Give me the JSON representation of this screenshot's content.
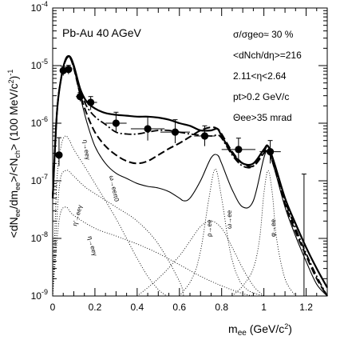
{
  "chart_data": {
    "type": "line",
    "title": "Pb-Au 40 AGeV",
    "ylabel": "<dN_ee/dm_ee>/<N_ch> (100 MeV/c^2)^-1",
    "xlabel": "m_ee (GeV/c^2)",
    "xlim": [
      0,
      1.3
    ],
    "ylim": [
      1e-09,
      0.0001
    ],
    "yscale": "log",
    "grid": false,
    "x_ticks": [
      "0",
      "0.2",
      "0.4",
      "0.6",
      "0.8",
      "1",
      "1.2"
    ],
    "y_ticks": [
      "10^-9",
      "10^-8",
      "10^-7",
      "10^-6",
      "10^-5",
      "10^-4"
    ],
    "annotations": {
      "line1": "σ/σgeo≈ 30 %",
      "line2": "<dNch/dη>=216",
      "line3": "2.11<η<2.64",
      "line4": "pt>0.2 GeV/c",
      "line5": "Θee>35 mrad"
    },
    "process_labels": {
      "eta_dalitz": "η→eeγ",
      "omega_dalitz": "ω→eeπ0",
      "etaprime": "η'→eeγ",
      "rho": "ρ→ee",
      "omega": "ω→ee",
      "phi": "φ→ee"
    },
    "data_points": [
      {
        "x": 0.03,
        "y": 2.8e-07,
        "xerr": 0.01,
        "yerr_up": 2.8e-07,
        "yerr_down": 1e-07
      },
      {
        "x": 0.05,
        "y": 8.2e-06,
        "xerr": 0.01,
        "yerr_up": 1.5e-06,
        "yerr_down": 1.5e-06
      },
      {
        "x": 0.075,
        "y": 8.6e-06,
        "xerr": 0.015,
        "yerr_up": 1.5e-06,
        "yerr_down": 1.5e-06
      },
      {
        "x": 0.13,
        "y": 2.9e-06,
        "xerr": 0.02,
        "yerr_up": 5e-07,
        "yerr_down": 5e-07
      },
      {
        "x": 0.18,
        "y": 2.3e-06,
        "xerr": 0.03,
        "yerr_up": 6e-07,
        "yerr_down": 6e-07
      },
      {
        "x": 0.3,
        "y": 1e-06,
        "xerr": 0.05,
        "yerr_up": 5.5e-07,
        "yerr_down": 3e-07
      },
      {
        "x": 0.45,
        "y": 8e-07,
        "xerr": 0.08,
        "yerr_up": 5e-07,
        "yerr_down": 3e-07
      },
      {
        "x": 0.58,
        "y": 7e-07,
        "xerr": 0.07,
        "yerr_up": 4.5e-07,
        "yerr_down": 2.5e-07
      },
      {
        "x": 0.72,
        "y": 6e-07,
        "xerr": 0.05,
        "yerr_up": 3e-07,
        "yerr_down": 2e-07
      },
      {
        "x": 0.88,
        "y": 3.5e-07,
        "xerr": 0.08,
        "yerr_up": 2e-07,
        "yerr_down": 1.5e-07
      },
      {
        "x": 1.03,
        "y": 3.2e-07,
        "xerr": 0.05,
        "yerr_up": 1.8e-07,
        "yerr_down": 1.2e-07
      },
      {
        "x": 1.19,
        "y": 1e-09,
        "xerr": 0.0,
        "yerr_up": 1.3e-07,
        "yerr_down": 0.0
      }
    ],
    "series": [
      {
        "style": "solid-thick",
        "x": [
          0.0,
          0.02,
          0.04,
          0.06,
          0.08,
          0.1,
          0.13,
          0.16,
          0.2,
          0.25,
          0.3,
          0.35,
          0.4,
          0.45,
          0.5,
          0.55,
          0.6,
          0.65,
          0.7,
          0.75,
          0.78,
          0.8,
          0.85,
          0.9,
          0.95,
          1.0,
          1.02,
          1.05,
          1.1,
          1.15,
          1.2,
          1.25,
          1.3
        ],
        "y": [
          5e-08,
          1.5e-06,
          6e-06,
          1.25e-05,
          1.45e-05,
          1e-05,
          4e-06,
          2.4e-06,
          1.8e-06,
          1.5e-06,
          1.4e-06,
          1.35e-06,
          1.3e-06,
          1.3e-06,
          1.25e-06,
          1.15e-06,
          1e-06,
          9e-07,
          7.5e-07,
          7.5e-07,
          8e-07,
          6e-07,
          3e-07,
          2e-07,
          2e-07,
          3.5e-07,
          4e-07,
          2e-07,
          5e-08,
          1.8e-08,
          7e-09,
          3e-09,
          1.4e-09
        ]
      },
      {
        "style": "dash-dot",
        "x": [
          0.0,
          0.02,
          0.04,
          0.06,
          0.08,
          0.1,
          0.13,
          0.16,
          0.2,
          0.25,
          0.3,
          0.35,
          0.4,
          0.45,
          0.5,
          0.55,
          0.6,
          0.65,
          0.7,
          0.75,
          0.78,
          0.8,
          0.85,
          0.9,
          0.95,
          1.0,
          1.02,
          1.05,
          1.1,
          1.15,
          1.2,
          1.25,
          1.3
        ],
        "y": [
          5e-08,
          1.5e-06,
          6e-06,
          1.2e-05,
          1.4e-05,
          9.5e-06,
          3.8e-06,
          2e-06,
          1.3e-06,
          9.5e-07,
          7e-07,
          6.5e-07,
          6.5e-07,
          7e-07,
          7.5e-07,
          7.5e-07,
          7e-07,
          6.5e-07,
          6.2e-07,
          6e-07,
          6.2e-07,
          5.5e-07,
          2.8e-07,
          1.8e-07,
          1.8e-07,
          3.3e-07,
          3.8e-07,
          1.9e-07,
          4.5e-08,
          1.5e-08,
          5.5e-09,
          2.2e-09,
          1e-09
        ]
      },
      {
        "style": "dashed",
        "x": [
          0.0,
          0.02,
          0.04,
          0.06,
          0.08,
          0.1,
          0.13,
          0.16,
          0.2,
          0.25,
          0.3,
          0.35,
          0.4,
          0.45,
          0.5,
          0.55,
          0.6,
          0.65,
          0.7,
          0.75,
          0.78,
          0.8,
          0.85,
          0.9,
          0.95,
          1.0,
          1.02,
          1.05,
          1.1,
          1.15,
          1.2,
          1.25,
          1.3
        ],
        "y": [
          5e-08,
          1.5e-06,
          6e-06,
          1.2e-05,
          1.4e-05,
          9e-06,
          3.2e-06,
          1.5e-06,
          7e-07,
          4e-07,
          2.8e-07,
          2.2e-07,
          2e-07,
          2.2e-07,
          2.8e-07,
          3.6e-07,
          4.5e-07,
          5.8e-07,
          7.5e-07,
          8.5e-07,
          8e-07,
          6.5e-07,
          3.2e-07,
          2e-07,
          1.8e-07,
          3e-07,
          3.4e-07,
          1.7e-07,
          4e-08,
          1.3e-08,
          5e-09,
          2e-09,
          1e-09
        ]
      },
      {
        "style": "solid-thin",
        "x": [
          0.0,
          0.02,
          0.04,
          0.06,
          0.08,
          0.1,
          0.13,
          0.16,
          0.2,
          0.25,
          0.3,
          0.35,
          0.4,
          0.45,
          0.5,
          0.55,
          0.6,
          0.62,
          0.65,
          0.7,
          0.75,
          0.78,
          0.8,
          0.85,
          0.9,
          0.95,
          1.0,
          1.02,
          1.05,
          1.1,
          1.15,
          1.2,
          1.25,
          1.3
        ],
        "y": [
          5e-08,
          1.5e-06,
          6e-06,
          1.2e-05,
          1.4e-05,
          9e-06,
          3e-06,
          1.1e-06,
          4e-07,
          2e-07,
          1.35e-07,
          1.1e-07,
          9e-08,
          8e-08,
          7.5e-08,
          6.5e-08,
          5e-08,
          4.5e-08,
          5e-08,
          1e-07,
          2.5e-07,
          2.8e-07,
          2e-07,
          7e-08,
          3.5e-08,
          4.5e-08,
          2.5e-07,
          3.2e-07,
          1.6e-07,
          3.5e-08,
          1.1e-08,
          4e-09,
          1.6e-09,
          1e-09
        ]
      },
      {
        "style": "dotted",
        "name": "η→eeγ",
        "x": [
          0.0,
          0.02,
          0.04,
          0.06,
          0.08,
          0.1,
          0.15,
          0.2,
          0.25,
          0.3,
          0.35,
          0.4,
          0.45,
          0.5,
          0.54
        ],
        "y": [
          1e-09,
          1e-07,
          4e-07,
          6e-07,
          5e-07,
          3.5e-07,
          1.8e-07,
          9e-08,
          4.5e-08,
          2.2e-08,
          1e-08,
          4.5e-09,
          2.2e-09,
          1.3e-09,
          1e-09
        ]
      },
      {
        "style": "dotted",
        "name": "ω→eeπ0",
        "x": [
          0.0,
          0.03,
          0.06,
          0.1,
          0.15,
          0.2,
          0.3,
          0.4,
          0.5,
          0.6,
          0.62
        ],
        "y": [
          1e-09,
          7e-08,
          1.5e-07,
          1.2e-07,
          8e-08,
          6e-08,
          3.5e-08,
          2e-08,
          8e-09,
          1.8e-09,
          1e-09
        ]
      },
      {
        "style": "dotted",
        "name": "η'→eeγ",
        "x": [
          0.0,
          0.03,
          0.06,
          0.1,
          0.2,
          0.3,
          0.4,
          0.5,
          0.6,
          0.7,
          0.8,
          0.9,
          0.95
        ],
        "y": [
          1e-09,
          2e-08,
          3.5e-08,
          2.5e-08,
          1.5e-08,
          1.1e-08,
          8e-09,
          5.5e-09,
          3.5e-09,
          2.2e-09,
          1.5e-09,
          1.1e-09,
          1e-09
        ]
      },
      {
        "style": "dotted",
        "name": "ρ→ee",
        "x": [
          0.4,
          0.5,
          0.6,
          0.65,
          0.7,
          0.75,
          0.8,
          0.85,
          0.9,
          0.95,
          1.0
        ],
        "y": [
          1e-09,
          2e-09,
          5e-09,
          9e-09,
          1.6e-08,
          2e-08,
          1.5e-08,
          7e-09,
          3e-09,
          1.5e-09,
          1e-09
        ]
      },
      {
        "style": "dotted",
        "name": "ω→ee",
        "x": [
          0.6,
          0.66,
          0.7,
          0.74,
          0.77,
          0.8,
          0.84,
          0.88,
          0.92,
          0.96,
          1.0
        ],
        "y": [
          1e-09,
          2e-09,
          6e-09,
          5e-08,
          1.6e-07,
          5e-08,
          6e-09,
          2e-09,
          1.3e-09,
          1.1e-09,
          1e-09
        ]
      },
      {
        "style": "dotted",
        "name": "φ→ee",
        "x": [
          0.85,
          0.9,
          0.95,
          0.98,
          1.0,
          1.02,
          1.04,
          1.06,
          1.1,
          1.15
        ],
        "y": [
          1e-09,
          1.5e-09,
          3e-09,
          1e-08,
          6e-08,
          1.5e-07,
          6e-08,
          1e-08,
          2e-09,
          1e-09
        ]
      }
    ]
  }
}
